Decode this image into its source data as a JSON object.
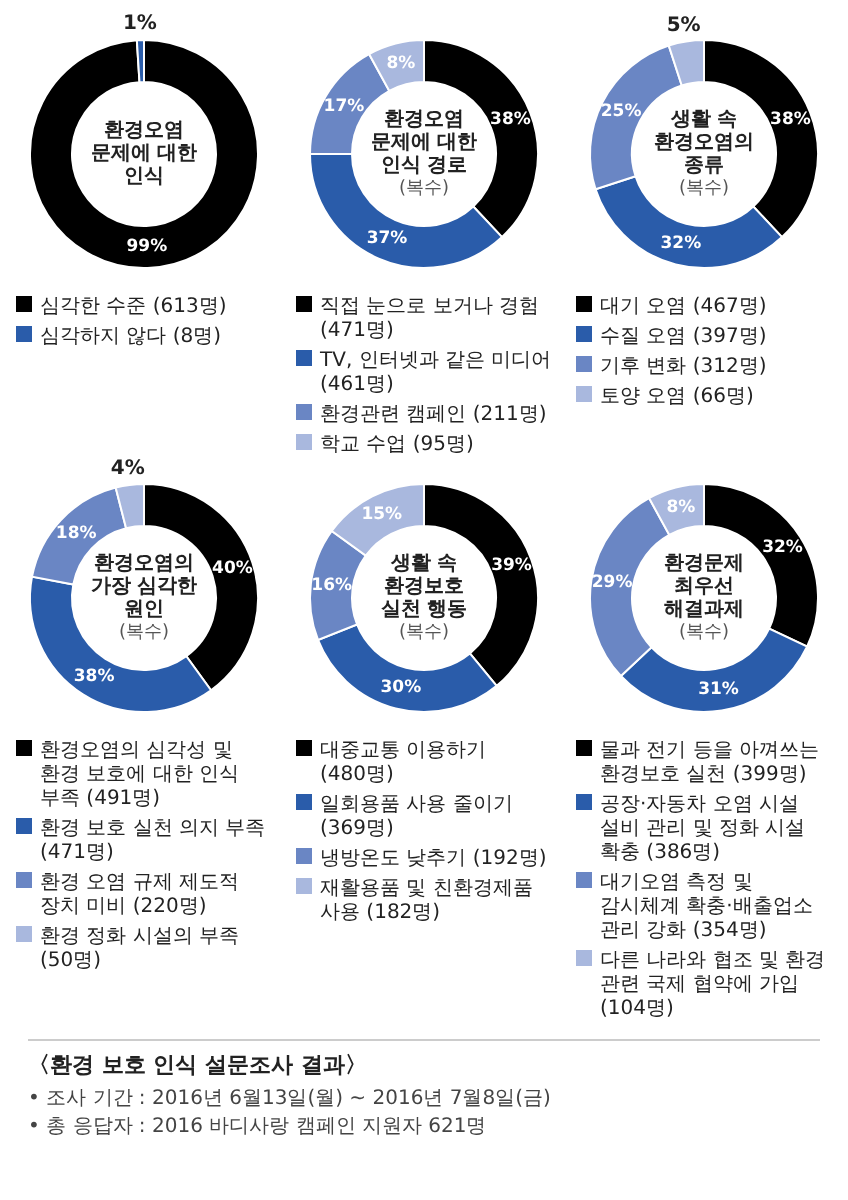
{
  "chart_data": [
    {
      "type": "donut",
      "title": "환경오염\n문제에 대한\n인식",
      "categories": [
        "심각한 수준 (613명)",
        "심각하지 않다 (8명)"
      ],
      "values": [
        99,
        1
      ],
      "colors": [
        "#000000",
        "#2a5caa"
      ],
      "value_labels": [
        "99%",
        "1%"
      ],
      "legend": "bottom"
    },
    {
      "type": "donut",
      "title": "환경오염\n문제에 대한\n인식 경로",
      "subtitle": "(복수)",
      "categories": [
        "직접 눈으로 보거나 경험 (471명)",
        "TV, 인터넷과 같은 미디어 (461명)",
        "환경관련 캠페인 (211명)",
        "학교 수업 (95명)"
      ],
      "values": [
        38,
        37,
        17,
        8
      ],
      "colors": [
        "#000000",
        "#2a5caa",
        "#6a86c4",
        "#a9b8de"
      ],
      "value_labels": [
        "38%",
        "37%",
        "17%",
        "8%"
      ],
      "legend": "bottom"
    },
    {
      "type": "donut",
      "title": "생활 속\n환경오염의\n종류",
      "subtitle": "(복수)",
      "categories": [
        "대기 오염 (467명)",
        "수질 오염 (397명)",
        "기후 변화 (312명)",
        "토양 오염 (66명)"
      ],
      "values": [
        38,
        32,
        25,
        5
      ],
      "colors": [
        "#000000",
        "#2a5caa",
        "#6a86c4",
        "#a9b8de"
      ],
      "value_labels": [
        "38%",
        "32%",
        "25%",
        "5%"
      ],
      "legend": "bottom"
    },
    {
      "type": "donut",
      "title": "환경오염의\n가장 심각한\n원인",
      "subtitle": "(복수)",
      "categories": [
        "환경오염의 심각성 및 환경 보호에 대한 인식 부족 (491명)",
        "환경 보호 실천 의지 부족 (471명)",
        "환경 오염 규제 제도적 장치 미비 (220명)",
        "환경 정화 시설의 부족 (50명)"
      ],
      "values": [
        40,
        38,
        18,
        4
      ],
      "colors": [
        "#000000",
        "#2a5caa",
        "#6a86c4",
        "#a9b8de"
      ],
      "value_labels": [
        "40%",
        "38%",
        "18%",
        "4%"
      ],
      "legend": "bottom"
    },
    {
      "type": "donut",
      "title": "생활 속\n환경보호\n실천 행동",
      "subtitle": "(복수)",
      "categories": [
        "대중교통 이용하기 (480명)",
        "일회용품 사용 줄이기 (369명)",
        "냉방온도 낮추기 (192명)",
        "재활용품 및 친환경제품 사용 (182명)"
      ],
      "values": [
        39,
        30,
        16,
        15
      ],
      "colors": [
        "#000000",
        "#2a5caa",
        "#6a86c4",
        "#a9b8de"
      ],
      "value_labels": [
        "39%",
        "30%",
        "16%",
        "15%"
      ],
      "legend": "bottom"
    },
    {
      "type": "donut",
      "title": "환경문제\n최우선\n해결과제",
      "subtitle": "(복수)",
      "categories": [
        "물과 전기 등을 아껴쓰는 환경보호 실천 (399명)",
        "공장·자동차 오염 시설 설비 관리 및 정화 시설 확충 (386명)",
        "대기오염 측정 및 감시체계 확충·배출업소 관리 강화 (354명)",
        "다른 나라와 협조 및 환경 관련 국제 협약에 가입 (104명)"
      ],
      "values": [
        32,
        31,
        29,
        8
      ],
      "colors": [
        "#000000",
        "#2a5caa",
        "#6a86c4",
        "#a9b8de"
      ],
      "value_labels": [
        "32%",
        "31%",
        "29%",
        "8%"
      ],
      "legend": "bottom"
    },
    {
      "type": "other",
      "title": "〈환경 보호 인식 설문조사 결과〉",
      "annotations": [
        "• 조사 기간 : 2016년 6월13일(월) ~ 2016년 7월8일(금)",
        "• 총 응답자 : 2016 바디사랑 캠페인 지원자 621명"
      ]
    }
  ]
}
